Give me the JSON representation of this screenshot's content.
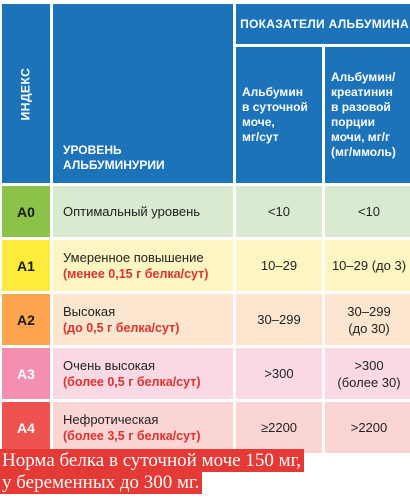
{
  "header": {
    "index": "ИНДЕКС",
    "level": "УРОВЕНЬ\nАЛЬБУМИНУРИИ",
    "albumin": "ПОКАЗАТЕЛИ АЛЬБУМИНА",
    "col_daily": "Альбумин\nв суточной\nмоче,\nмг/сут",
    "col_ratio": "Альбумин/\nкреатинин\nв разовой\nпорции\nмочи, мг/г\n(мг/ммоль)"
  },
  "rows": [
    {
      "code": "А0",
      "level": "Оптимальный уровень",
      "note": "",
      "daily": "<10",
      "ratio": "<10",
      "ratio_sub": "",
      "colors": {
        "code_bg": "#8bc34a",
        "row_bg": "#d9ead0",
        "code_text": "#1a1a1a"
      }
    },
    {
      "code": "А1",
      "level": "Умеренное повышение",
      "note": "(менее 0,15 г белка/сут)",
      "daily": "10–29",
      "ratio": "10–29 (до 3)",
      "ratio_sub": "",
      "colors": {
        "code_bg": "#ffeb3b",
        "row_bg": "#fdf6c3",
        "code_text": "#1a1a1a"
      }
    },
    {
      "code": "А2",
      "level": "Высокая",
      "note": "(до 0,5 г белка/сут)",
      "daily": "30–299",
      "ratio": "30–299",
      "ratio_sub": "(до 30)",
      "colors": {
        "code_bg": "#ffa54f",
        "row_bg": "#fde6cf",
        "code_text": "#1a1a1a"
      }
    },
    {
      "code": "А3",
      "level": "Очень высокая",
      "note": "(более 0,5 г белка/сут)",
      "daily": ">300",
      "ratio": ">300",
      "ratio_sub": "(более 30)",
      "colors": {
        "code_bg": "#f48fb1",
        "row_bg": "#fbd9e4",
        "code_text": "#ffffff"
      }
    },
    {
      "code": "А4",
      "level": "Нефротическая",
      "note": "(более 3,5 г белка/сут)",
      "daily": "≥2200",
      "ratio": ">2200",
      "ratio_sub": "",
      "colors": {
        "code_bg": "#ef5350",
        "row_bg": "#fbd5d3",
        "code_text": "#ffffff"
      }
    }
  ],
  "footer_note": {
    "line1": "Норма белка в суточной моче 150 мг,",
    "line2": "у беременных до 300 мг."
  },
  "colors": {
    "header_bg": "#1c73b9",
    "note_bg": "#e53935",
    "note_accent": "#e0312c"
  }
}
